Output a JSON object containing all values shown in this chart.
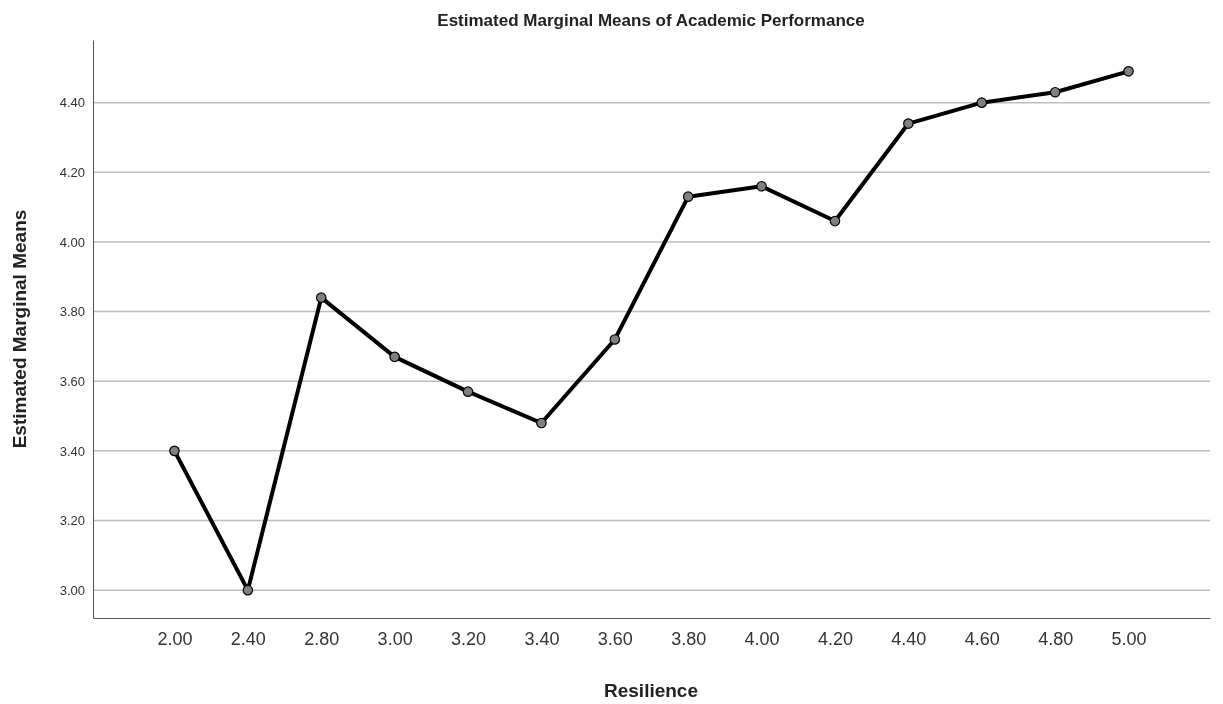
{
  "chart_data": {
    "type": "line",
    "title": "Estimated Marginal Means of Academic Performance",
    "xlabel": "Resilience",
    "ylabel": "Estimated Marginal Means",
    "categories": [
      "2.00",
      "2.40",
      "2.80",
      "3.00",
      "3.20",
      "3.40",
      "3.60",
      "3.80",
      "4.00",
      "4.20",
      "4.40",
      "4.60",
      "4.80",
      "5.00"
    ],
    "series": [
      {
        "color": "#000000",
        "values": [
          3.4,
          3.0,
          3.84,
          3.67,
          3.57,
          3.48,
          3.72,
          4.13,
          4.16,
          4.06,
          4.34,
          4.4,
          4.43,
          4.49
        ]
      }
    ],
    "ylim": [
      2.92,
      4.58
    ],
    "yticks": [
      {
        "value": 3.0,
        "label": "3.00"
      },
      {
        "value": 3.2,
        "label": "3.20"
      },
      {
        "value": 3.4,
        "label": "3.40"
      },
      {
        "value": 3.6,
        "label": "3.60"
      },
      {
        "value": 3.8,
        "label": "3.80"
      },
      {
        "value": 4.0,
        "label": "4.00"
      },
      {
        "value": 4.2,
        "label": "4.20"
      },
      {
        "value": 4.4,
        "label": "4.40"
      }
    ],
    "grid": "y",
    "marker": "circle",
    "line_style": "solid"
  }
}
